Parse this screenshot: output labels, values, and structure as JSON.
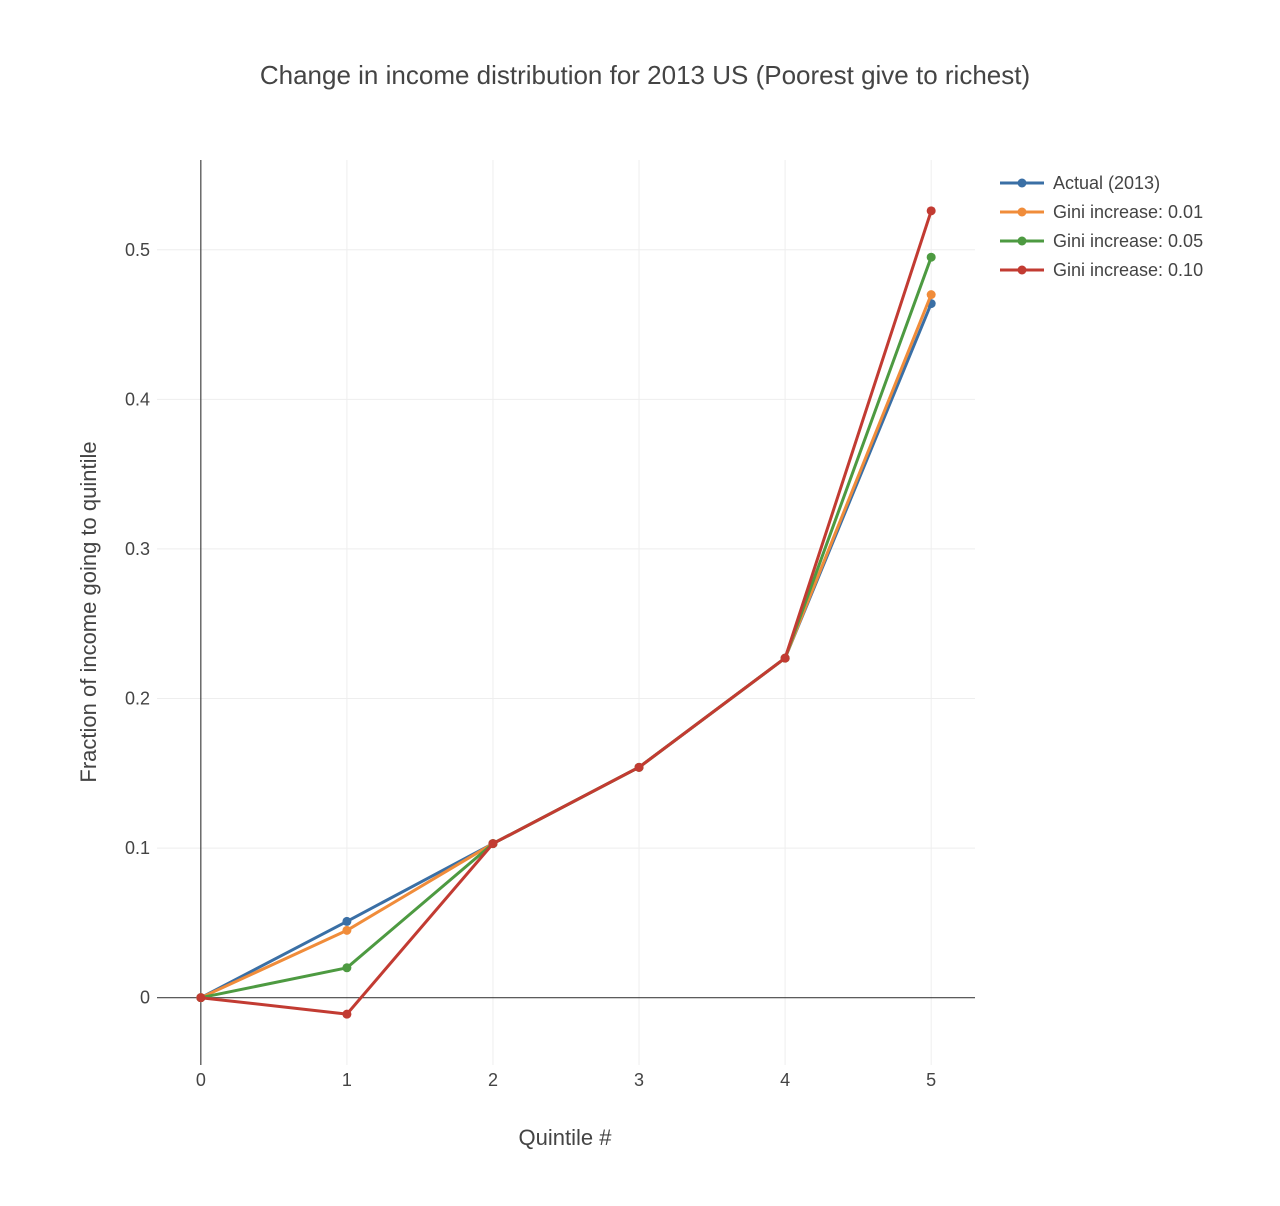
{
  "chart_data": {
    "type": "line",
    "title": "Change in income distribution for 2013 US (Poorest give to richest)",
    "xlabel": "Quintile #",
    "ylabel": "Fraction of income going to quintile",
    "x": [
      0,
      1,
      2,
      3,
      4,
      5
    ],
    "xlim": [
      -0.3,
      5.3
    ],
    "ylim": [
      -0.045,
      0.56
    ],
    "xticks": [
      "0",
      "1",
      "2",
      "3",
      "4",
      "5"
    ],
    "yticks": [
      {
        "value": 0,
        "label": "0"
      },
      {
        "value": 0.1,
        "label": "0.1"
      },
      {
        "value": 0.2,
        "label": "0.2"
      },
      {
        "value": 0.3,
        "label": "0.3"
      },
      {
        "value": 0.4,
        "label": "0.4"
      },
      {
        "value": 0.5,
        "label": "0.5"
      }
    ],
    "grid": true,
    "legend_position": "top-right",
    "series": [
      {
        "name": "Actual (2013)",
        "color": "#3a6fa5",
        "values": [
          0,
          0.051,
          0.103,
          0.154,
          0.227,
          0.464
        ]
      },
      {
        "name": "Gini increase: 0.01",
        "color": "#f08c3a",
        "values": [
          0,
          0.045,
          0.103,
          0.154,
          0.227,
          0.47
        ]
      },
      {
        "name": "Gini increase: 0.05",
        "color": "#4d9a41",
        "values": [
          0,
          0.02,
          0.103,
          0.154,
          0.227,
          0.495
        ]
      },
      {
        "name": "Gini increase: 0.10",
        "color": "#c23b32",
        "values": [
          0,
          -0.011,
          0.103,
          0.154,
          0.227,
          0.526
        ]
      }
    ]
  }
}
